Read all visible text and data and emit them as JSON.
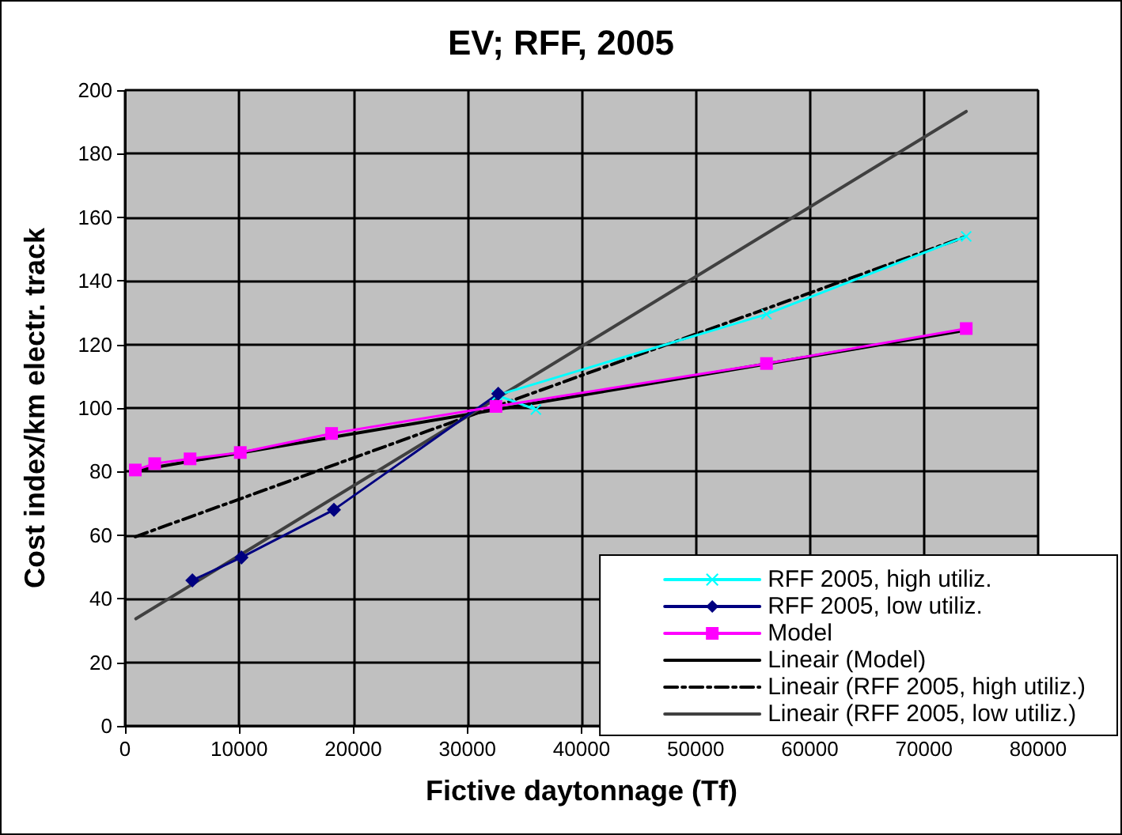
{
  "chart_data": {
    "type": "line",
    "title": "EV; RFF, 2005",
    "xlabel": "Fictive daytonnage (Tf)",
    "ylabel": "Cost index/km electr. track",
    "xlim": [
      0,
      80000
    ],
    "xticks": [
      0,
      10000,
      20000,
      30000,
      40000,
      50000,
      60000,
      70000,
      80000
    ],
    "ylim": [
      0,
      200
    ],
    "yticks": [
      0,
      20,
      40,
      60,
      80,
      100,
      120,
      140,
      160,
      180,
      200
    ],
    "grid": true,
    "legend": "bottom right",
    "series": [
      {
        "name": "RFF 2005, high utiliz.",
        "color": "#00ffff",
        "marker": "cross",
        "x": [
          36000,
          32600,
          56200,
          73700
        ],
        "values": [
          99.5,
          104,
          129.5,
          154
        ]
      },
      {
        "name": "RFF 2005, low utiliz.",
        "color": "#000080",
        "marker": "diamond",
        "x": [
          5900,
          10200,
          18300,
          32700
        ],
        "values": [
          45.8,
          53,
          68,
          104.5
        ]
      },
      {
        "name": "Model",
        "color": "#ff00ff",
        "marker": "square",
        "x": [
          900,
          2600,
          5700,
          10100,
          18100,
          32500,
          56200,
          73700
        ],
        "values": [
          80.5,
          82.5,
          84,
          86,
          92,
          100.5,
          114,
          125
        ]
      },
      {
        "name": "Lineair (Model)",
        "color": "#000000",
        "marker": "none",
        "line_style": "solid",
        "x": [
          900,
          73700
        ],
        "values": [
          80.3,
          124.5
        ]
      },
      {
        "name": "Lineair (RFF 2005, high utiliz.)",
        "color": "#000000",
        "marker": "none",
        "line_style": "dashed",
        "x": [
          900,
          73700
        ],
        "values": [
          59.5,
          154
        ]
      },
      {
        "name": "Lineair (RFF 2005, low utiliz.)",
        "color": "#404040",
        "marker": "none",
        "line_style": "solid",
        "x": [
          950,
          73700
        ],
        "values": [
          33.7,
          193.3
        ]
      }
    ]
  }
}
